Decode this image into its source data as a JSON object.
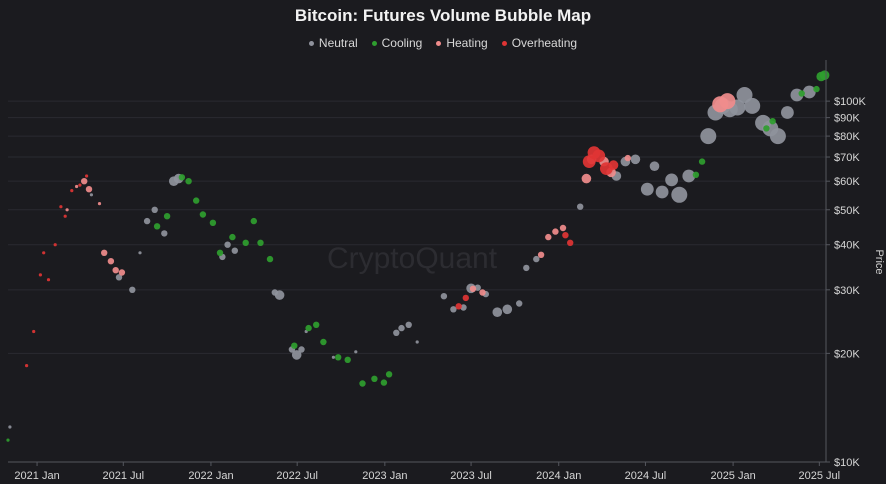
{
  "chart_data": {
    "type": "scatter",
    "title": "Bitcoin: Futures Volume Bubble Map",
    "watermark": "CryptoQuant",
    "ylabel": "Price",
    "y_scale": "log",
    "ylim": [
      10000,
      130000
    ],
    "xlim": [
      "2020-11-01",
      "2025-07-15"
    ],
    "x_ticks": [
      {
        "date": "2021-01-01",
        "label": "2021 Jan"
      },
      {
        "date": "2021-07-01",
        "label": "2021 Jul"
      },
      {
        "date": "2022-01-01",
        "label": "2022 Jan"
      },
      {
        "date": "2022-07-01",
        "label": "2022 Jul"
      },
      {
        "date": "2023-01-01",
        "label": "2023 Jan"
      },
      {
        "date": "2023-07-01",
        "label": "2023 Jul"
      },
      {
        "date": "2024-01-01",
        "label": "2024 Jan"
      },
      {
        "date": "2024-07-01",
        "label": "2024 Jul"
      },
      {
        "date": "2025-01-01",
        "label": "2025 Jan"
      },
      {
        "date": "2025-07-01",
        "label": "2025 Jul"
      }
    ],
    "y_ticks": [
      {
        "value": 10000,
        "label": "$10K"
      },
      {
        "value": 20000,
        "label": "$20K"
      },
      {
        "value": 30000,
        "label": "$30K"
      },
      {
        "value": 40000,
        "label": "$40K"
      },
      {
        "value": 50000,
        "label": "$50K"
      },
      {
        "value": 60000,
        "label": "$60K"
      },
      {
        "value": 70000,
        "label": "$70K"
      },
      {
        "value": 80000,
        "label": "$80K"
      },
      {
        "value": 90000,
        "label": "$90K"
      },
      {
        "value": 100000,
        "label": "$100K"
      }
    ],
    "legend": [
      {
        "name": "Neutral",
        "color": "#8f929c"
      },
      {
        "name": "Cooling",
        "color": "#2f9e2f"
      },
      {
        "name": "Heating",
        "color": "#f08c8c"
      },
      {
        "name": "Overheating",
        "color": "#e03434"
      }
    ],
    "bubble_size_range": [
      1,
      5
    ],
    "series": [
      {
        "name": "Neutral",
        "color": "#8f929c",
        "points": [
          [
            "2020-11-05",
            12500,
            1
          ],
          [
            "2021-04-25",
            55000,
            1
          ],
          [
            "2021-06-22",
            32500,
            2
          ],
          [
            "2021-07-20",
            30000,
            2
          ],
          [
            "2021-08-05",
            38000,
            1
          ],
          [
            "2021-08-20",
            46500,
            2
          ],
          [
            "2021-09-05",
            50000,
            2
          ],
          [
            "2021-09-25",
            43000,
            2
          ],
          [
            "2021-10-15",
            60000,
            3
          ],
          [
            "2021-10-25",
            61000,
            3
          ],
          [
            "2022-01-25",
            37000,
            2
          ],
          [
            "2022-02-05",
            40000,
            2
          ],
          [
            "2022-02-20",
            38500,
            2
          ],
          [
            "2022-05-15",
            29500,
            2
          ],
          [
            "2022-05-25",
            29000,
            3
          ],
          [
            "2022-06-20",
            20500,
            2
          ],
          [
            "2022-06-30",
            19800,
            3
          ],
          [
            "2022-07-10",
            20500,
            2
          ],
          [
            "2022-07-20",
            23000,
            1
          ],
          [
            "2022-09-15",
            19500,
            1
          ],
          [
            "2022-11-01",
            20200,
            1
          ],
          [
            "2023-01-25",
            22800,
            2
          ],
          [
            "2023-02-05",
            23500,
            2
          ],
          [
            "2023-02-20",
            24000,
            2
          ],
          [
            "2023-03-10",
            21500,
            1
          ],
          [
            "2023-05-05",
            28800,
            2
          ],
          [
            "2023-05-25",
            26500,
            2
          ],
          [
            "2023-06-15",
            26800,
            2
          ],
          [
            "2023-07-01",
            30300,
            3
          ],
          [
            "2023-07-15",
            30400,
            2
          ],
          [
            "2023-08-01",
            29200,
            2
          ],
          [
            "2023-08-25",
            26000,
            3
          ],
          [
            "2023-09-15",
            26500,
            3
          ],
          [
            "2023-10-10",
            27500,
            2
          ],
          [
            "2023-10-25",
            34500,
            2
          ],
          [
            "2023-11-15",
            36500,
            2
          ],
          [
            "2024-02-15",
            51000,
            2
          ],
          [
            "2024-05-01",
            62000,
            3
          ],
          [
            "2024-05-20",
            68000,
            3
          ],
          [
            "2024-06-10",
            69000,
            3
          ],
          [
            "2024-07-05",
            57000,
            4
          ],
          [
            "2024-07-20",
            66000,
            3
          ],
          [
            "2024-08-05",
            56000,
            4
          ],
          [
            "2024-08-25",
            60500,
            4
          ],
          [
            "2024-09-10",
            55000,
            5
          ],
          [
            "2024-09-30",
            62000,
            4
          ],
          [
            "2024-11-10",
            80000,
            5
          ],
          [
            "2024-11-25",
            93000,
            5
          ],
          [
            "2024-12-10",
            97000,
            5
          ],
          [
            "2024-12-25",
            95000,
            5
          ],
          [
            "2025-01-10",
            96000,
            5
          ],
          [
            "2025-01-25",
            104000,
            5
          ],
          [
            "2025-02-10",
            97000,
            5
          ],
          [
            "2025-03-05",
            87000,
            5
          ],
          [
            "2025-03-20",
            84000,
            5
          ],
          [
            "2025-04-05",
            80000,
            5
          ],
          [
            "2025-04-25",
            93000,
            4
          ],
          [
            "2025-05-15",
            104000,
            4
          ],
          [
            "2025-06-10",
            106000,
            4
          ]
        ]
      },
      {
        "name": "Cooling",
        "color": "#2f9e2f",
        "points": [
          [
            "2020-11-01",
            11500,
            1
          ],
          [
            "2021-09-10",
            45000,
            2
          ],
          [
            "2021-10-01",
            48000,
            2
          ],
          [
            "2021-11-01",
            61500,
            2
          ],
          [
            "2021-11-15",
            60000,
            2
          ],
          [
            "2021-12-01",
            53000,
            2
          ],
          [
            "2021-12-15",
            48500,
            2
          ],
          [
            "2022-01-05",
            46000,
            2
          ],
          [
            "2022-01-20",
            38000,
            2
          ],
          [
            "2022-02-15",
            42000,
            2
          ],
          [
            "2022-03-15",
            40500,
            2
          ],
          [
            "2022-04-01",
            46500,
            2
          ],
          [
            "2022-04-15",
            40500,
            2
          ],
          [
            "2022-05-05",
            36500,
            2
          ],
          [
            "2022-06-25",
            21000,
            2
          ],
          [
            "2022-07-25",
            23500,
            2
          ],
          [
            "2022-08-10",
            24000,
            2
          ],
          [
            "2022-08-25",
            21500,
            2
          ],
          [
            "2022-09-25",
            19500,
            2
          ],
          [
            "2022-10-15",
            19200,
            2
          ],
          [
            "2022-11-15",
            16500,
            2
          ],
          [
            "2022-12-10",
            17000,
            2
          ],
          [
            "2022-12-30",
            16600,
            2
          ],
          [
            "2023-01-10",
            17500,
            2
          ],
          [
            "2024-10-15",
            62500,
            2
          ],
          [
            "2024-10-28",
            68000,
            2
          ],
          [
            "2025-03-12",
            84000,
            2
          ],
          [
            "2025-03-25",
            88000,
            2
          ],
          [
            "2025-05-25",
            105000,
            2
          ],
          [
            "2025-06-25",
            108000,
            2
          ],
          [
            "2025-07-05",
            117000,
            3
          ],
          [
            "2025-07-12",
            118000,
            3
          ]
        ]
      },
      {
        "name": "Heating",
        "color": "#f08c8c",
        "points": [
          [
            "2021-03-05",
            50000,
            1
          ],
          [
            "2021-03-25",
            58000,
            1
          ],
          [
            "2021-04-10",
            60000,
            2
          ],
          [
            "2021-04-20",
            57000,
            2
          ],
          [
            "2021-05-12",
            52000,
            1
          ],
          [
            "2021-05-22",
            38000,
            2
          ],
          [
            "2021-06-05",
            36000,
            2
          ],
          [
            "2021-06-15",
            34000,
            2
          ],
          [
            "2021-06-28",
            33500,
            2
          ],
          [
            "2023-07-05",
            30200,
            2
          ],
          [
            "2023-07-25",
            29500,
            2
          ],
          [
            "2023-11-25",
            37500,
            2
          ],
          [
            "2023-12-10",
            42000,
            2
          ],
          [
            "2023-12-25",
            43500,
            2
          ],
          [
            "2024-01-10",
            44500,
            2
          ],
          [
            "2024-02-28",
            61000,
            3
          ],
          [
            "2024-03-10",
            69000,
            3
          ],
          [
            "2024-04-05",
            68000,
            3
          ],
          [
            "2024-04-20",
            63500,
            3
          ],
          [
            "2024-05-25",
            69500,
            2
          ],
          [
            "2024-12-05",
            98000,
            5
          ],
          [
            "2024-12-20",
            100000,
            5
          ]
        ]
      },
      {
        "name": "Overheating",
        "color": "#e03434",
        "points": [
          [
            "2020-12-10",
            18500,
            1
          ],
          [
            "2020-12-25",
            23000,
            1
          ],
          [
            "2021-01-08",
            33000,
            1
          ],
          [
            "2021-01-15",
            38000,
            1
          ],
          [
            "2021-01-25",
            32000,
            1
          ],
          [
            "2021-02-08",
            40000,
            1
          ],
          [
            "2021-02-20",
            51000,
            1
          ],
          [
            "2021-03-01",
            48000,
            1
          ],
          [
            "2021-03-15",
            56500,
            1
          ],
          [
            "2021-04-01",
            58500,
            1
          ],
          [
            "2021-04-15",
            62000,
            1
          ],
          [
            "2023-06-05",
            27000,
            2
          ],
          [
            "2023-06-20",
            28500,
            2
          ],
          [
            "2024-01-15",
            42500,
            2
          ],
          [
            "2024-01-25",
            40500,
            2
          ],
          [
            "2024-03-05",
            68000,
            4
          ],
          [
            "2024-03-15",
            72000,
            4
          ],
          [
            "2024-03-25",
            70500,
            4
          ],
          [
            "2024-04-10",
            65000,
            4
          ],
          [
            "2024-04-25",
            66500,
            3
          ]
        ]
      }
    ]
  }
}
